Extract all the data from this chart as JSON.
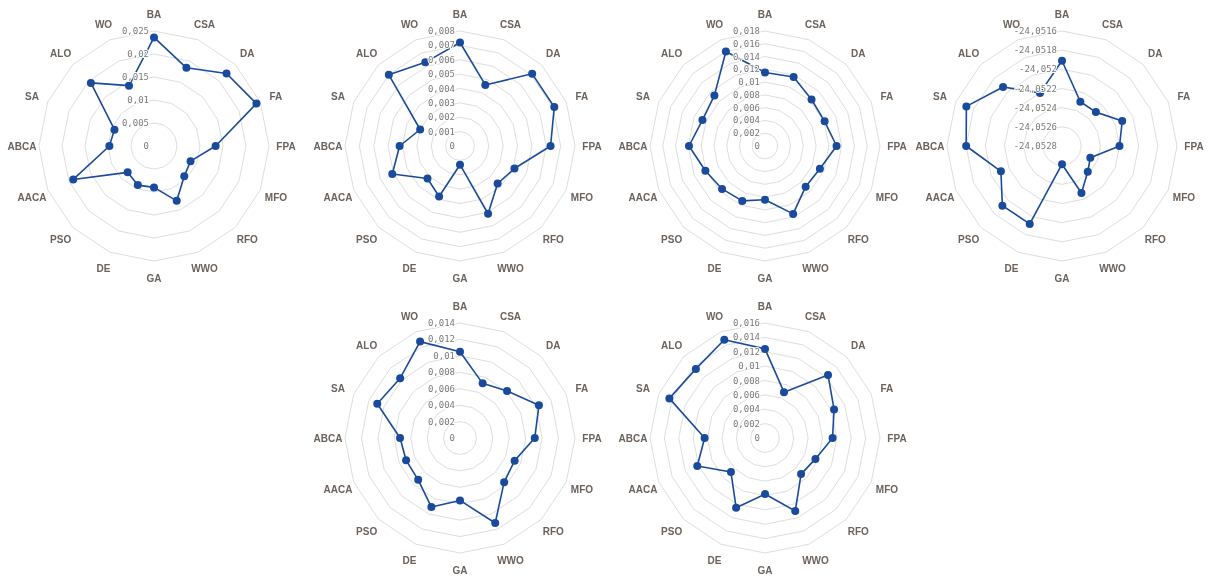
{
  "chart_data": [
    {
      "type": "radar",
      "categories": [
        "BA",
        "CSA",
        "DA",
        "FA",
        "FPA",
        "MFO",
        "RFO",
        "WWO",
        "GA",
        "DE",
        "PSO",
        "AACA",
        "ABCA",
        "SA",
        "ALO",
        "WO"
      ],
      "ylim": [
        0,
        0.025
      ],
      "yticks": [
        {
          "value": 0,
          "label": "0"
        },
        {
          "value": 0.005,
          "label": "0,005"
        },
        {
          "value": 0.01,
          "label": "0,01"
        },
        {
          "value": 0.015,
          "label": "0,015"
        },
        {
          "value": 0.02,
          "label": "0,02"
        },
        {
          "value": 0.025,
          "label": "0,025"
        }
      ],
      "grid": true,
      "marker": "circle",
      "series": [
        {
          "color": "#1a4a9b",
          "values": [
            0.0236,
            0.0184,
            0.0223,
            0.0241,
            0.0134,
            0.0086,
            0.0093,
            0.0129,
            0.009,
            0.0092,
            0.0081,
            0.019,
            0.0097,
            0.0093,
            0.0194,
            0.0142
          ]
        }
      ]
    },
    {
      "type": "radar",
      "categories": [
        "BA",
        "CSA",
        "DA",
        "FA",
        "FPA",
        "MFO",
        "RFO",
        "WWO",
        "GA",
        "DE",
        "PSO",
        "AACA",
        "ABCA",
        "SA",
        "ALO",
        "WO"
      ],
      "ylim": [
        0,
        0.008
      ],
      "yticks": [
        {
          "value": 0,
          "label": "0"
        },
        {
          "value": 0.001,
          "label": "0,001"
        },
        {
          "value": 0.002,
          "label": "0,002"
        },
        {
          "value": 0.003,
          "label": "0,003"
        },
        {
          "value": 0.004,
          "label": "0,004"
        },
        {
          "value": 0.005,
          "label": "0,005"
        },
        {
          "value": 0.006,
          "label": "0,006"
        },
        {
          "value": 0.007,
          "label": "0,007"
        },
        {
          "value": 0.008,
          "label": "0,008"
        }
      ],
      "grid": true,
      "marker": "circle",
      "series": [
        {
          "color": "#1a4a9b",
          "values": [
            0.0072,
            0.0046,
            0.0071,
            0.0071,
            0.0063,
            0.0041,
            0.0037,
            0.0051,
            0.0013,
            0.0038,
            0.0032,
            0.0051,
            0.0042,
            0.003,
            0.007,
            0.0063
          ]
        }
      ]
    },
    {
      "type": "radar",
      "categories": [
        "BA",
        "CSA",
        "DA",
        "FA",
        "FPA",
        "MFO",
        "RFO",
        "WWO",
        "GA",
        "DE",
        "PSO",
        "AACA",
        "ABCA",
        "SA",
        "ALO",
        "WO"
      ],
      "ylim": [
        0,
        0.018
      ],
      "yticks": [
        {
          "value": 0,
          "label": "0"
        },
        {
          "value": 0.002,
          "label": "0,002"
        },
        {
          "value": 0.004,
          "label": "0,004"
        },
        {
          "value": 0.006,
          "label": "0,006"
        },
        {
          "value": 0.008,
          "label": "0,008"
        },
        {
          "value": 0.01,
          "label": "0,01"
        },
        {
          "value": 0.012,
          "label": "0,012"
        },
        {
          "value": 0.014,
          "label": "0,014"
        },
        {
          "value": 0.016,
          "label": "0,016"
        },
        {
          "value": 0.018,
          "label": "0,018"
        }
      ],
      "grid": true,
      "marker": "circle",
      "series": [
        {
          "color": "#1a4a9b",
          "values": [
            0.0115,
            0.0117,
            0.0103,
            0.0101,
            0.0112,
            0.0093,
            0.009,
            0.0115,
            0.0084,
            0.0093,
            0.0095,
            0.0101,
            0.0119,
            0.0106,
            0.0112,
            0.016
          ]
        }
      ]
    },
    {
      "type": "radar",
      "categories": [
        "BA",
        "CSA",
        "DA",
        "FA",
        "FPA",
        "MFO",
        "RFO",
        "WWO",
        "GA",
        "DE",
        "PSO",
        "AACA",
        "ABCA",
        "SA",
        "ALO",
        "WO"
      ],
      "ylim": [
        -24.0528,
        -24.0516
      ],
      "yticks": [
        {
          "value": -24.0528,
          "label": "-24,0528"
        },
        {
          "value": -24.0526,
          "label": "-24,0526"
        },
        {
          "value": -24.0524,
          "label": "-24,0524"
        },
        {
          "value": -24.0522,
          "label": "-24,0522"
        },
        {
          "value": -24.052,
          "label": "-24,052"
        },
        {
          "value": -24.0518,
          "label": "-24,0518"
        },
        {
          "value": -24.0516,
          "label": "-24,0516"
        }
      ],
      "grid": true,
      "marker": "circle",
      "series": [
        {
          "color": "#1a4a9b",
          "values": [
            -24.05191,
            -24.0523,
            -24.0523,
            -24.05212,
            -24.0522,
            -24.05248,
            -24.05242,
            -24.05227,
            -24.05261,
            -24.05192,
            -24.05192,
            -24.05211,
            -24.0518,
            -24.05172,
            -24.05193,
            -24.0522
          ]
        }
      ]
    },
    {
      "type": "radar",
      "categories": [
        "BA",
        "CSA",
        "DA",
        "FA",
        "FPA",
        "MFO",
        "RFO",
        "WWO",
        "GA",
        "DE",
        "PSO",
        "AACA",
        "ABCA",
        "SA",
        "ALO",
        "WO"
      ],
      "ylim": [
        0,
        0.014
      ],
      "yticks": [
        {
          "value": 0,
          "label": "0"
        },
        {
          "value": 0.002,
          "label": "0,002"
        },
        {
          "value": 0.004,
          "label": "0,004"
        },
        {
          "value": 0.006,
          "label": "0,006"
        },
        {
          "value": 0.008,
          "label": "0,008"
        },
        {
          "value": 0.01,
          "label": "0,01"
        },
        {
          "value": 0.012,
          "label": "0,012"
        },
        {
          "value": 0.014,
          "label": "0,014"
        }
      ],
      "grid": true,
      "marker": "circle",
      "series": [
        {
          "color": "#1a4a9b",
          "values": [
            0.0105,
            0.0072,
            0.0081,
            0.0104,
            0.0091,
            0.0072,
            0.0076,
            0.0112,
            0.0076,
            0.0091,
            0.0072,
            0.0071,
            0.0073,
            0.0109,
            0.0103,
            0.0127
          ]
        }
      ]
    },
    {
      "type": "radar",
      "categories": [
        "BA",
        "CSA",
        "DA",
        "FA",
        "FPA",
        "MFO",
        "RFO",
        "WWO",
        "GA",
        "DE",
        "PSO",
        "AACA",
        "ABCA",
        "SA",
        "ALO",
        "WO"
      ],
      "ylim": [
        0,
        0.016
      ],
      "yticks": [
        {
          "value": 0,
          "label": "0"
        },
        {
          "value": 0.002,
          "label": "0,002"
        },
        {
          "value": 0.004,
          "label": "0,004"
        },
        {
          "value": 0.006,
          "label": "0,006"
        },
        {
          "value": 0.008,
          "label": "0,008"
        },
        {
          "value": 0.01,
          "label": "0,01"
        },
        {
          "value": 0.012,
          "label": "0,012"
        },
        {
          "value": 0.014,
          "label": "0,014"
        },
        {
          "value": 0.016,
          "label": "0,016"
        }
      ],
      "grid": true,
      "marker": "circle",
      "series": [
        {
          "color": "#1a4a9b",
          "values": [
            0.0124,
            0.0069,
            0.0124,
            0.0104,
            0.0094,
            0.0076,
            0.0071,
            0.011,
            0.0078,
            0.0105,
            0.0067,
            0.0102,
            0.0084,
            0.0144,
            0.0136,
            0.0148
          ]
        }
      ]
    }
  ]
}
